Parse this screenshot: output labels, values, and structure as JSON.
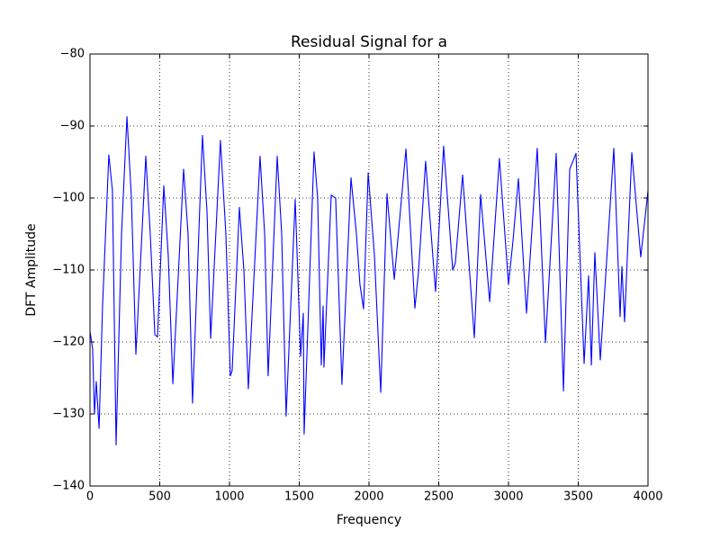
{
  "chart_data": {
    "type": "line",
    "title": "Residual Signal for a",
    "x_label": "Frequency",
    "y_label": "DFT Amplitude",
    "x": [
      0,
      19,
      32,
      45,
      65,
      90,
      135,
      161,
      187,
      226,
      265,
      297,
      329,
      400,
      432,
      465,
      484,
      529,
      561,
      594,
      671,
      703,
      735,
      806,
      839,
      865,
      935,
      974,
      1006,
      1019,
      1071,
      1103,
      1135,
      1219,
      1252,
      1277,
      1342,
      1374,
      1406,
      1471,
      1510,
      1529,
      1535,
      1606,
      1632,
      1658,
      1671,
      1677,
      1729,
      1761,
      1806,
      1871,
      1910,
      1935,
      1961,
      1994,
      2039,
      2084,
      2129,
      2181,
      2265,
      2329,
      2355,
      2406,
      2477,
      2535,
      2600,
      2619,
      2671,
      2755,
      2800,
      2865,
      2935,
      3000,
      3032,
      3071,
      3129,
      3206,
      3265,
      3342,
      3394,
      3439,
      3484,
      3542,
      3574,
      3594,
      3619,
      3658,
      3755,
      3800,
      3813,
      3832,
      3884,
      3948,
      4000
    ],
    "series": [
      {
        "name": "a",
        "color": "#0000ff",
        "values": [
          -118.5,
          -121,
          -130,
          -125.5,
          -132,
          -115,
          -94,
          -99,
          -134.3,
          -105,
          -88.7,
          -100,
          -121.7,
          -94.2,
          -105,
          -119,
          -119.3,
          -98.3,
          -108,
          -125.8,
          -96,
          -105,
          -128.5,
          -91.3,
          -102,
          -119.5,
          -92,
          -105,
          -124.7,
          -124,
          -101.3,
          -110,
          -126.5,
          -94.2,
          -105,
          -124.7,
          -94.2,
          -105,
          -130.3,
          -100.2,
          -122,
          -116,
          -132.8,
          -93.6,
          -100,
          -123.2,
          -115,
          -123.5,
          -99.6,
          -100,
          -125.9,
          -97.2,
          -105,
          -112,
          -115.4,
          -96.5,
          -108,
          -127,
          -99.4,
          -111.3,
          -93.2,
          -115.3,
          -110.2,
          -94.9,
          -113,
          -92.8,
          -110,
          -109,
          -96.8,
          -119.4,
          -99.5,
          -114.4,
          -94.5,
          -112,
          -106,
          -97.3,
          -116,
          -93.1,
          -120.1,
          -93.8,
          -126.8,
          -96,
          -93.8,
          -123,
          -110.8,
          -123.2,
          -107.6,
          -122.5,
          -93.1,
          -116.5,
          -109.5,
          -117.2,
          -93.7,
          -108.2,
          -99
        ]
      }
    ],
    "xlim": [
      0,
      4000
    ],
    "xticks": [
      0,
      500,
      1000,
      1500,
      2000,
      2500,
      3000,
      3500,
      4000
    ],
    "ylim": [
      -140,
      -80
    ],
    "yticks": [
      {
        "value": -140,
        "label": "−140"
      },
      {
        "value": -130,
        "label": "−130"
      },
      {
        "value": -120,
        "label": "−120"
      },
      {
        "value": -110,
        "label": "−110"
      },
      {
        "value": -100,
        "label": "−100"
      },
      {
        "value": -90,
        "label": "−90"
      },
      {
        "value": -80,
        "label": "−80"
      }
    ],
    "grid": true,
    "y_label_color": "#0000ff"
  }
}
